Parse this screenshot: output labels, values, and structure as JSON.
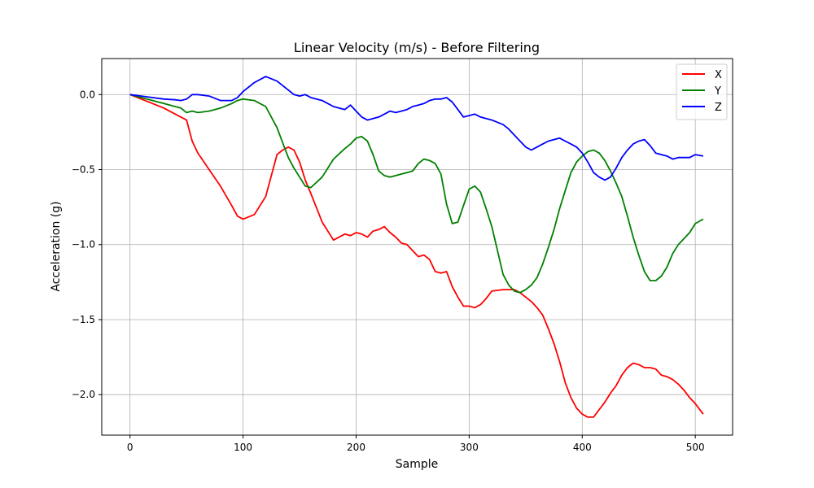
{
  "chart_data": {
    "type": "line",
    "title": "Linear Velocity (m/s) - Before Filtering",
    "xlabel": "Sample",
    "ylabel": "Acceleration (g)",
    "xlim": [
      -25,
      533
    ],
    "ylim": [
      -2.27,
      0.24
    ],
    "xticks": [
      0,
      100,
      200,
      300,
      400,
      500
    ],
    "yticks": [
      0.0,
      -0.5,
      -1.0,
      -1.5,
      -2.0
    ],
    "xtick_labels": [
      "0",
      "100",
      "200",
      "300",
      "400",
      "500"
    ],
    "ytick_labels": [
      "0.0",
      "−0.5",
      "−1.0",
      "−1.5",
      "−2.0"
    ],
    "grid": true,
    "legend": "top-right",
    "x": [
      0,
      10,
      20,
      30,
      40,
      45,
      50,
      55,
      60,
      70,
      80,
      90,
      95,
      100,
      110,
      120,
      130,
      135,
      140,
      145,
      150,
      155,
      160,
      170,
      180,
      190,
      195,
      200,
      205,
      210,
      215,
      220,
      225,
      230,
      235,
      240,
      245,
      250,
      255,
      260,
      265,
      270,
      275,
      280,
      285,
      290,
      295,
      300,
      305,
      310,
      315,
      320,
      330,
      335,
      340,
      345,
      350,
      355,
      360,
      365,
      370,
      375,
      380,
      385,
      390,
      395,
      400,
      405,
      410,
      415,
      420,
      425,
      430,
      435,
      440,
      445,
      450,
      455,
      460,
      465,
      470,
      475,
      480,
      485,
      490,
      495,
      500,
      507
    ],
    "series": [
      {
        "name": "X",
        "color": "#ff0000",
        "values": [
          0,
          -0.03,
          -0.06,
          -0.09,
          -0.13,
          -0.15,
          -0.17,
          -0.31,
          -0.39,
          -0.5,
          -0.61,
          -0.74,
          -0.81,
          -0.83,
          -0.8,
          -0.68,
          -0.4,
          -0.37,
          -0.35,
          -0.37,
          -0.45,
          -0.57,
          -0.66,
          -0.85,
          -0.97,
          -0.93,
          -0.94,
          -0.92,
          -0.93,
          -0.95,
          -0.91,
          -0.9,
          -0.88,
          -0.92,
          -0.95,
          -0.99,
          -1.0,
          -1.04,
          -1.08,
          -1.07,
          -1.1,
          -1.18,
          -1.19,
          -1.18,
          -1.28,
          -1.35,
          -1.41,
          -1.41,
          -1.42,
          -1.4,
          -1.36,
          -1.31,
          -1.3,
          -1.3,
          -1.3,
          -1.32,
          -1.35,
          -1.38,
          -1.42,
          -1.47,
          -1.56,
          -1.66,
          -1.78,
          -1.92,
          -2.02,
          -2.09,
          -2.13,
          -2.15,
          -2.15,
          -2.1,
          -2.05,
          -1.99,
          -1.94,
          -1.87,
          -1.82,
          -1.79,
          -1.8,
          -1.82,
          -1.82,
          -1.83,
          -1.87,
          -1.88,
          -1.9,
          -1.93,
          -1.97,
          -2.02,
          -2.06,
          -2.13
        ]
      },
      {
        "name": "Y",
        "color": "#008000",
        "values": [
          0,
          -0.02,
          -0.04,
          -0.06,
          -0.08,
          -0.09,
          -0.12,
          -0.11,
          -0.12,
          -0.11,
          -0.09,
          -0.06,
          -0.04,
          -0.03,
          -0.04,
          -0.08,
          -0.22,
          -0.32,
          -0.42,
          -0.49,
          -0.55,
          -0.61,
          -0.62,
          -0.55,
          -0.43,
          -0.36,
          -0.33,
          -0.29,
          -0.28,
          -0.31,
          -0.4,
          -0.51,
          -0.54,
          -0.55,
          -0.54,
          -0.53,
          -0.52,
          -0.51,
          -0.46,
          -0.43,
          -0.44,
          -0.46,
          -0.53,
          -0.73,
          -0.86,
          -0.85,
          -0.74,
          -0.63,
          -0.61,
          -0.65,
          -0.76,
          -0.88,
          -1.2,
          -1.27,
          -1.31,
          -1.32,
          -1.3,
          -1.27,
          -1.22,
          -1.13,
          -1.02,
          -0.9,
          -0.76,
          -0.64,
          -0.52,
          -0.45,
          -0.41,
          -0.38,
          -0.37,
          -0.39,
          -0.44,
          -0.51,
          -0.59,
          -0.68,
          -0.81,
          -0.95,
          -1.07,
          -1.18,
          -1.24,
          -1.24,
          -1.21,
          -1.15,
          -1.06,
          -1.0,
          -0.96,
          -0.92,
          -0.86,
          -0.83
        ]
      },
      {
        "name": "Z",
        "color": "#0000ff",
        "values": [
          0,
          -0.01,
          -0.02,
          -0.03,
          -0.035,
          -0.04,
          -0.03,
          0.0,
          0.0,
          -0.01,
          -0.04,
          -0.04,
          -0.02,
          0.02,
          0.08,
          0.12,
          0.09,
          0.06,
          0.03,
          0.0,
          -0.01,
          0.0,
          -0.02,
          -0.04,
          -0.08,
          -0.1,
          -0.07,
          -0.11,
          -0.15,
          -0.17,
          -0.16,
          -0.15,
          -0.13,
          -0.11,
          -0.12,
          -0.11,
          -0.1,
          -0.08,
          -0.07,
          -0.06,
          -0.04,
          -0.03,
          -0.03,
          -0.02,
          -0.05,
          -0.1,
          -0.15,
          -0.14,
          -0.13,
          -0.15,
          -0.16,
          -0.17,
          -0.2,
          -0.23,
          -0.27,
          -0.31,
          -0.35,
          -0.37,
          -0.35,
          -0.33,
          -0.31,
          -0.3,
          -0.29,
          -0.31,
          -0.33,
          -0.35,
          -0.39,
          -0.45,
          -0.52,
          -0.55,
          -0.57,
          -0.55,
          -0.49,
          -0.42,
          -0.37,
          -0.33,
          -0.31,
          -0.3,
          -0.34,
          -0.39,
          -0.4,
          -0.41,
          -0.43,
          -0.42,
          -0.42,
          -0.42,
          -0.4,
          -0.41
        ]
      }
    ]
  }
}
